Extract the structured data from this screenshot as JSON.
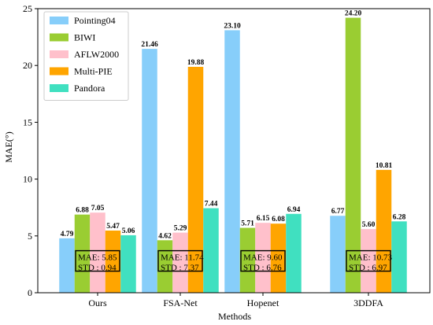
{
  "chart_data": {
    "type": "bar",
    "xlabel": "Methods",
    "ylabel": "MAE(°)",
    "ylim": [
      0,
      25
    ],
    "yticks": [
      0,
      5,
      10,
      15,
      20,
      25
    ],
    "grid": false,
    "legend_position": "top-left",
    "categories": [
      "Ours",
      "FSA-Net",
      "Hopenet",
      "3DDFA"
    ],
    "series": [
      {
        "name": "Pointing04",
        "color": "#87CEFA",
        "values": [
          4.79,
          21.46,
          23.1,
          6.77
        ],
        "labels": [
          "4.79",
          "21.46",
          "23.10",
          "6.77"
        ]
      },
      {
        "name": "BIWI",
        "color": "#9ACD32",
        "values": [
          6.88,
          4.62,
          5.71,
          24.2
        ],
        "labels": [
          "6.88",
          "4.62",
          "5.71",
          "24.20"
        ]
      },
      {
        "name": "AFLW2000",
        "color": "#FFC0CB",
        "values": [
          7.05,
          5.29,
          6.15,
          5.6
        ],
        "labels": [
          "7.05",
          "5.29",
          "6.15",
          "5.60"
        ]
      },
      {
        "name": "Multi-PIE",
        "color": "#FFA500",
        "values": [
          5.47,
          19.88,
          6.08,
          10.81
        ],
        "labels": [
          "5.47",
          "19.88",
          "6.08",
          "10.81"
        ]
      },
      {
        "name": "Pandora",
        "color": "#40E0C0",
        "values": [
          5.06,
          7.44,
          6.94,
          6.28
        ],
        "labels": [
          "5.06",
          "7.44",
          "6.94",
          "6.28"
        ]
      }
    ],
    "annotations": [
      {
        "mae": "MAE: 5.85",
        "std": "STD : 0.94"
      },
      {
        "mae": "MAE: 11.74",
        "std": "STD : 7.37"
      },
      {
        "mae": "MAE: 9.60",
        "std": "STD : 6.76"
      },
      {
        "mae": "MAE: 10.73",
        "std": "STD : 6.97"
      }
    ]
  }
}
